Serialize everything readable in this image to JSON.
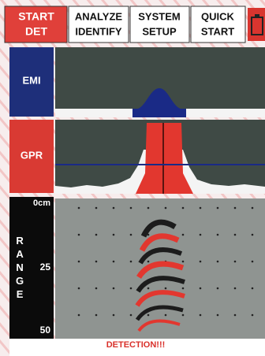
{
  "toolbar": {
    "buttons": [
      {
        "lines": [
          "START",
          "DET"
        ]
      },
      {
        "lines": [
          "ANALYZE",
          "IDENTIFY"
        ]
      },
      {
        "lines": [
          "SYSTEM",
          "SETUP"
        ]
      },
      {
        "lines": [
          "QUICK",
          "START"
        ]
      }
    ]
  },
  "panels": {
    "emi": {
      "label": "EMI"
    },
    "gpr": {
      "label": "GPR"
    },
    "range": {
      "top": "0cm",
      "letters": "RANGE",
      "mid": "25",
      "bottom": "50"
    }
  },
  "status": {
    "message": "DETECTION!!!"
  }
}
